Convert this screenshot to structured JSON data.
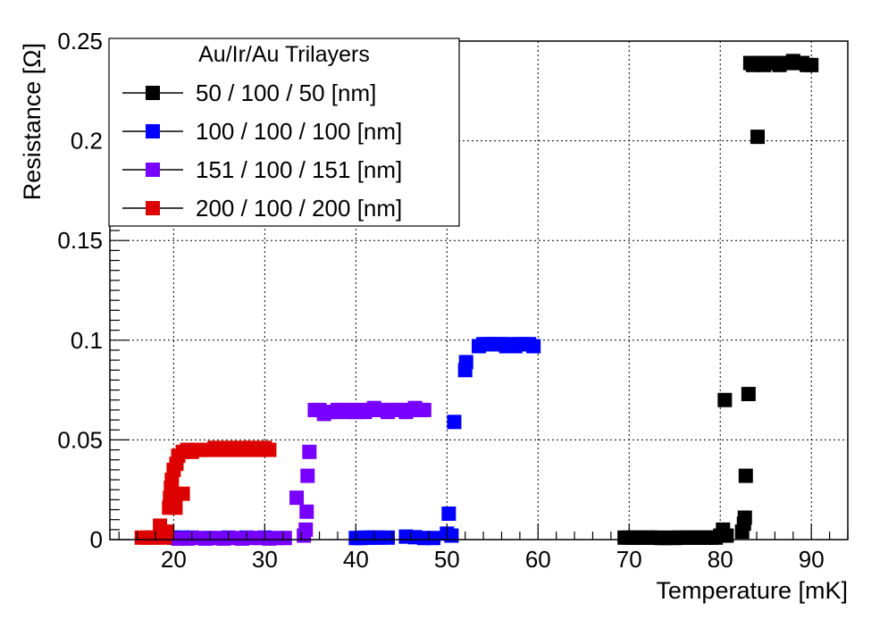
{
  "chart_data": {
    "type": "scatter",
    "xlabel": "Temperature [mK]",
    "ylabel": "Resistance [Ω]",
    "xlim": [
      13,
      94
    ],
    "ylim": [
      0,
      0.25
    ],
    "x_ticks": [
      20,
      30,
      40,
      50,
      60,
      70,
      80,
      90
    ],
    "x_tick_labels": [
      "20",
      "30",
      "40",
      "50",
      "60",
      "70",
      "80",
      "90"
    ],
    "y_ticks": [
      0,
      0.05,
      0.1,
      0.15,
      0.2,
      0.25
    ],
    "y_tick_labels": [
      "0",
      "0.05",
      "0.1",
      "0.15",
      "0.2",
      "0.25"
    ],
    "grid": true,
    "legend": {
      "title": "Au/Ir/Au Trilayers",
      "placement": "top-left"
    },
    "series": [
      {
        "name": "50 / 100 / 50 [nm]",
        "color": "#000000",
        "points": [
          [
            69.5,
            0.001
          ],
          [
            70,
            0.001
          ],
          [
            70.5,
            0.001
          ],
          [
            71,
            0.001
          ],
          [
            71.5,
            0.001
          ],
          [
            72,
            0.001
          ],
          [
            72.5,
            0.001
          ],
          [
            73,
            0.001
          ],
          [
            73.5,
            0.0008
          ],
          [
            74,
            0.0008
          ],
          [
            74.5,
            0.001
          ],
          [
            75,
            0.0008
          ],
          [
            75.5,
            0.001
          ],
          [
            76,
            0.001
          ],
          [
            76.5,
            0.001
          ],
          [
            77,
            0.001
          ],
          [
            77.5,
            0.001
          ],
          [
            78,
            0.001
          ],
          [
            78.5,
            0.001
          ],
          [
            79,
            0.001
          ],
          [
            79.5,
            0.001
          ],
          [
            80,
            0.002
          ],
          [
            80.3,
            0.005
          ],
          [
            80.5,
            0.07
          ],
          [
            80.7,
            0.002
          ],
          [
            82.4,
            0.004
          ],
          [
            82.6,
            0.008
          ],
          [
            82.7,
            0.011
          ],
          [
            82.8,
            0.032
          ],
          [
            83.1,
            0.073
          ],
          [
            83.3,
            0.239
          ],
          [
            83.6,
            0.238
          ],
          [
            84,
            0.239
          ],
          [
            84.1,
            0.202
          ],
          [
            84.4,
            0.239
          ],
          [
            84.8,
            0.238
          ],
          [
            85.2,
            0.239
          ],
          [
            86,
            0.239
          ],
          [
            86.5,
            0.238
          ],
          [
            87,
            0.239
          ],
          [
            87.5,
            0.239
          ],
          [
            88,
            0.24
          ],
          [
            88.5,
            0.239
          ],
          [
            89,
            0.239
          ],
          [
            89.5,
            0.238
          ],
          [
            90,
            0.238
          ]
        ]
      },
      {
        "name": "100 / 100 / 100 [nm]",
        "color": "#0000ff",
        "points": [
          [
            20,
            0.001
          ],
          [
            21,
            0.001
          ],
          [
            22,
            0.001
          ],
          [
            24,
            0.0008
          ],
          [
            26,
            0.001
          ],
          [
            28,
            0.001
          ],
          [
            30,
            0.001
          ],
          [
            40,
            0.0008
          ],
          [
            40.5,
            0.0008
          ],
          [
            41,
            0.001
          ],
          [
            41.5,
            0.001
          ],
          [
            42,
            0.001
          ],
          [
            42.5,
            0.001
          ],
          [
            43.5,
            0.001
          ],
          [
            45.5,
            0.0015
          ],
          [
            46.5,
            0.0012
          ],
          [
            47.5,
            0.0008
          ],
          [
            48.5,
            0.0008
          ],
          [
            50,
            0.003
          ],
          [
            50.2,
            0.013
          ],
          [
            50.5,
            0.002
          ],
          [
            50.8,
            0.059
          ],
          [
            52,
            0.085
          ],
          [
            52.1,
            0.089
          ],
          [
            53.5,
            0.097
          ],
          [
            54,
            0.098
          ],
          [
            54.5,
            0.098
          ],
          [
            55,
            0.098
          ],
          [
            55.5,
            0.098
          ],
          [
            56,
            0.098
          ],
          [
            56.5,
            0.097
          ],
          [
            57,
            0.098
          ],
          [
            57.5,
            0.097
          ],
          [
            58,
            0.098
          ],
          [
            58.5,
            0.098
          ],
          [
            59,
            0.098
          ],
          [
            59.5,
            0.097
          ]
        ]
      },
      {
        "name": "151 / 100 / 151 [nm]",
        "color": "#7700ff",
        "points": [
          [
            20.5,
            0.0005
          ],
          [
            21.5,
            0.0005
          ],
          [
            22.5,
            0.0008
          ],
          [
            23.5,
            0.0005
          ],
          [
            24.5,
            0.0008
          ],
          [
            25.5,
            0.0005
          ],
          [
            26.5,
            0.0008
          ],
          [
            27.5,
            0.0005
          ],
          [
            28.5,
            0.0008
          ],
          [
            29.5,
            0.0008
          ],
          [
            30.5,
            0.0005
          ],
          [
            31.5,
            0.0008
          ],
          [
            32.2,
            0.0008
          ],
          [
            33.5,
            0.021
          ],
          [
            34.3,
            0.002
          ],
          [
            34.5,
            0.005
          ],
          [
            34.6,
            0.014
          ],
          [
            34.7,
            0.032
          ],
          [
            34.9,
            0.044
          ],
          [
            35.5,
            0.065
          ],
          [
            36,
            0.065
          ],
          [
            36.5,
            0.063
          ],
          [
            37,
            0.064
          ],
          [
            37.5,
            0.064
          ],
          [
            38,
            0.065
          ],
          [
            38.5,
            0.065
          ],
          [
            39,
            0.064
          ],
          [
            39.5,
            0.065
          ],
          [
            40,
            0.064
          ],
          [
            40.5,
            0.065
          ],
          [
            41,
            0.064
          ],
          [
            41.5,
            0.065
          ],
          [
            42,
            0.066
          ],
          [
            42.5,
            0.065
          ],
          [
            43,
            0.065
          ],
          [
            43.5,
            0.064
          ],
          [
            44,
            0.065
          ],
          [
            44.5,
            0.065
          ],
          [
            45,
            0.065
          ],
          [
            45.5,
            0.064
          ],
          [
            46,
            0.065
          ],
          [
            46.5,
            0.066
          ],
          [
            47,
            0.065
          ],
          [
            47.5,
            0.065
          ]
        ]
      },
      {
        "name": "200 / 100 / 200 [nm]",
        "color": "#dd0000",
        "points": [
          [
            16.5,
            0.001
          ],
          [
            17.2,
            0.001
          ],
          [
            17.8,
            0.001
          ],
          [
            18.5,
            0.007
          ],
          [
            19,
            0.001
          ],
          [
            19.3,
            0.004
          ],
          [
            19.5,
            0.016
          ],
          [
            19.6,
            0.021
          ],
          [
            19.7,
            0.026
          ],
          [
            19.8,
            0.03
          ],
          [
            20,
            0.035
          ],
          [
            20.2,
            0.016
          ],
          [
            20.3,
            0.038
          ],
          [
            20.5,
            0.042
          ],
          [
            21,
            0.023
          ],
          [
            21,
            0.044
          ],
          [
            21.5,
            0.045
          ],
          [
            22,
            0.044
          ],
          [
            22.5,
            0.045
          ],
          [
            23,
            0.045
          ],
          [
            23.5,
            0.045
          ],
          [
            24,
            0.045
          ],
          [
            24.5,
            0.046
          ],
          [
            25,
            0.045
          ],
          [
            25.5,
            0.045
          ],
          [
            26,
            0.046
          ],
          [
            26.5,
            0.045
          ],
          [
            27,
            0.045
          ],
          [
            27.5,
            0.046
          ],
          [
            28,
            0.045
          ],
          [
            28.5,
            0.046
          ],
          [
            29,
            0.045
          ],
          [
            29.5,
            0.045
          ],
          [
            30,
            0.046
          ],
          [
            30.5,
            0.045
          ]
        ]
      }
    ]
  }
}
